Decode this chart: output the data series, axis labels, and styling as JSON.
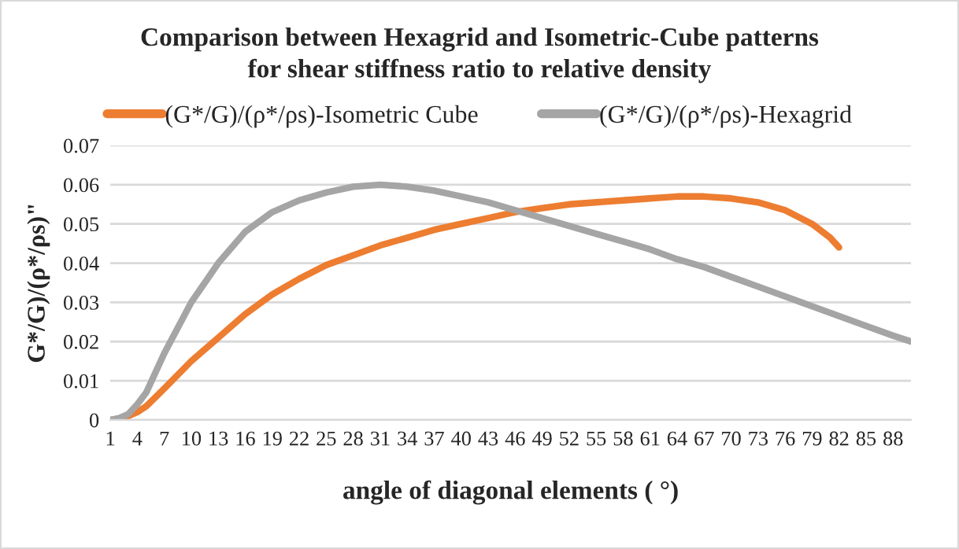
{
  "chart_data": {
    "type": "line",
    "title": "Comparison between Hexagrid and Isometric-Cube patterns\nfor shear stiffness ratio to relative density",
    "xlabel": "angle of diagonal elements ( °)",
    "ylabel": "G*/G)/(ρ*/ρs)\"",
    "series": [
      {
        "name": "(G*/G)/(ρ*/ρs)-Isometric Cube",
        "color": "#ed7d31",
        "x": [
          1,
          2,
          3,
          4,
          5,
          7,
          10,
          13,
          16,
          19,
          22,
          25,
          28,
          31,
          34,
          37,
          40,
          43,
          46,
          49,
          52,
          55,
          58,
          61,
          64,
          67,
          70,
          73,
          76,
          79,
          81,
          82
        ],
        "values": [
          0,
          0.0003,
          0.001,
          0.002,
          0.0035,
          0.008,
          0.015,
          0.021,
          0.027,
          0.032,
          0.036,
          0.0395,
          0.042,
          0.0445,
          0.0465,
          0.0485,
          0.05,
          0.0515,
          0.053,
          0.054,
          0.055,
          0.0555,
          0.056,
          0.0565,
          0.057,
          0.057,
          0.0565,
          0.0555,
          0.0535,
          0.05,
          0.0465,
          0.044
        ]
      },
      {
        "name": "(G*/G)/(ρ*/ρs)-Hexagrid",
        "color": "#a5a5a5",
        "x": [
          1,
          2,
          3,
          4,
          5,
          7,
          10,
          13,
          16,
          19,
          22,
          25,
          28,
          31,
          34,
          37,
          40,
          43,
          46,
          49,
          52,
          55,
          58,
          61,
          64,
          67,
          70,
          73,
          76,
          79,
          82,
          85,
          88,
          90
        ],
        "values": [
          0,
          0.0005,
          0.0015,
          0.004,
          0.007,
          0.017,
          0.03,
          0.04,
          0.048,
          0.053,
          0.056,
          0.058,
          0.0595,
          0.06,
          0.0595,
          0.0585,
          0.057,
          0.0555,
          0.0535,
          0.0515,
          0.0495,
          0.0475,
          0.0455,
          0.0435,
          0.041,
          0.039,
          0.0365,
          0.034,
          0.0315,
          0.029,
          0.0265,
          0.024,
          0.0215,
          0.02
        ]
      }
    ],
    "xlim": [
      1,
      90
    ],
    "xticks": [
      1,
      4,
      7,
      10,
      13,
      16,
      19,
      22,
      25,
      28,
      31,
      34,
      37,
      40,
      43,
      46,
      49,
      52,
      55,
      58,
      61,
      64,
      67,
      70,
      73,
      76,
      79,
      82,
      85,
      88
    ],
    "ylim": [
      0,
      0.07
    ],
    "yticks": [
      0,
      0.01,
      0.02,
      0.03,
      0.04,
      0.05,
      0.06,
      0.07
    ],
    "grid": "y",
    "legend": "top"
  }
}
